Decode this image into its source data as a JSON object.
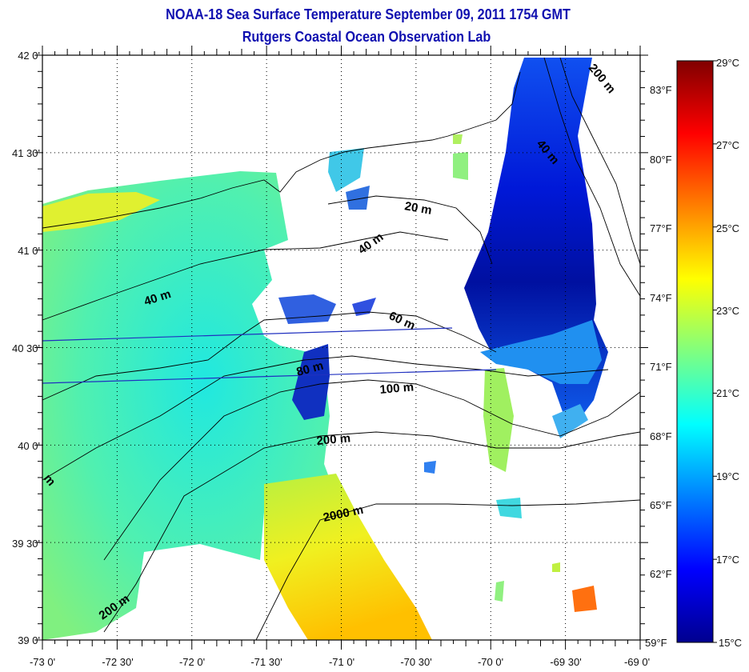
{
  "header": {
    "title": "NOAA-18 Sea Surface Temperature September 09, 2011 1754 GMT",
    "subtitle": "Rutgers Coastal Ocean Observation Lab"
  },
  "map": {
    "lon_labels": [
      "-73 0'",
      "-72 30'",
      "-72 0'",
      "-71 30'",
      "-71 0'",
      "-70 30'",
      "-70 0'",
      "-69 30'",
      "-69 0'"
    ],
    "lat_labels": [
      "42 0'",
      "41 30'",
      "41 0'",
      "40 30'",
      "40 0'",
      "39 30'",
      "39 0'"
    ],
    "contour_labels": [
      "20 m",
      "40 m",
      "40 m",
      "60 m",
      "80 m",
      "100 m",
      "200 m",
      "2000 m",
      "200 m",
      "200 m",
      "40 m",
      "m"
    ]
  },
  "colorbar": {
    "fahrenheit_labels": [
      "83°F",
      "80°F",
      "77°F",
      "74°F",
      "71°F",
      "68°F",
      "65°F",
      "62°F",
      "59°F"
    ],
    "celsius_labels": [
      "29°C",
      "27°C",
      "25°C",
      "23°C",
      "21°C",
      "19°C",
      "17°C",
      "15°C"
    ],
    "min_c": 15,
    "max_c": 29,
    "colors": [
      "#00008f",
      "#0000ff",
      "#00ffff",
      "#ffff00",
      "#ff0000",
      "#800000"
    ]
  }
}
